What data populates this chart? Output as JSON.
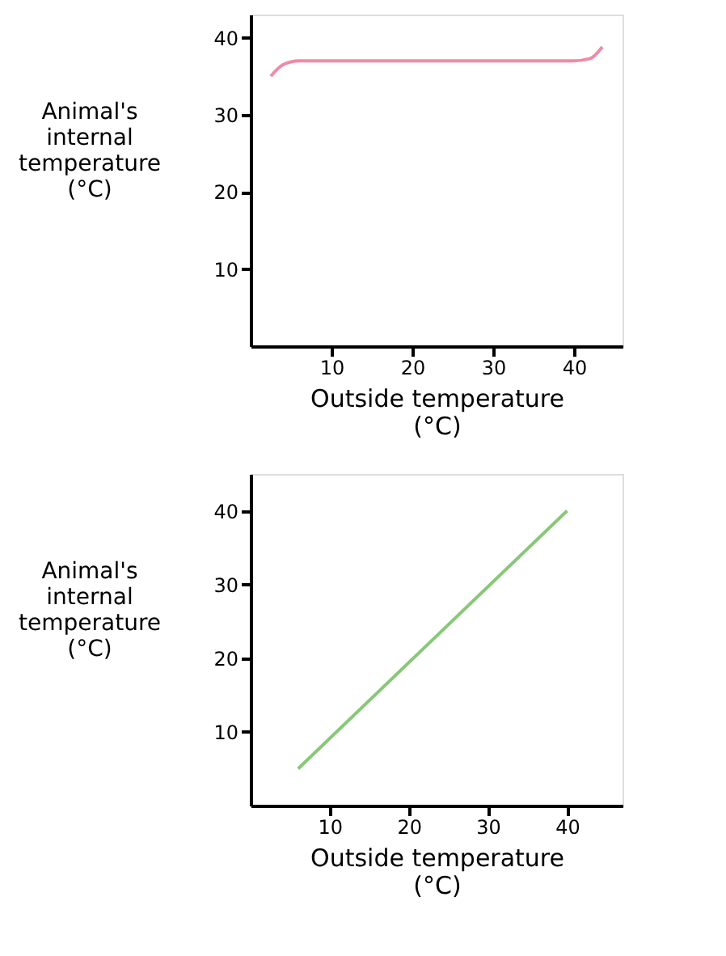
{
  "chart_data": [
    {
      "type": "line",
      "xlabel": "Outside temperature\n(°C)",
      "ylabel": "Animal's\ninternal\ntemperature\n(°C)",
      "x": [
        2.5,
        4,
        6,
        40,
        42,
        43.5
      ],
      "series": [
        {
          "color": "#f08aa6",
          "values": [
            35,
            36.5,
            37,
            37,
            37.3,
            38.8
          ]
        }
      ],
      "xlim": [
        0,
        46
      ],
      "ylim": [
        0,
        43
      ],
      "xticks": [
        10,
        20,
        30,
        40
      ],
      "yticks": [
        10,
        20,
        30,
        40
      ],
      "grid": false,
      "legend": false,
      "marker": "none",
      "line_style": "solid"
    },
    {
      "type": "line",
      "xlabel": "Outside temperature\n(°C)",
      "ylabel": "Animal's\ninternal\ntemperature\n(°C)",
      "x": [
        6,
        40
      ],
      "series": [
        {
          "color": "#88c878",
          "values": [
            5,
            40
          ]
        }
      ],
      "xlim": [
        0,
        47
      ],
      "ylim": [
        0,
        45
      ],
      "xticks": [
        10,
        20,
        30,
        40
      ],
      "yticks": [
        10,
        20,
        30,
        40
      ],
      "grid": false,
      "legend": false,
      "marker": "none",
      "line_style": "solid"
    }
  ]
}
